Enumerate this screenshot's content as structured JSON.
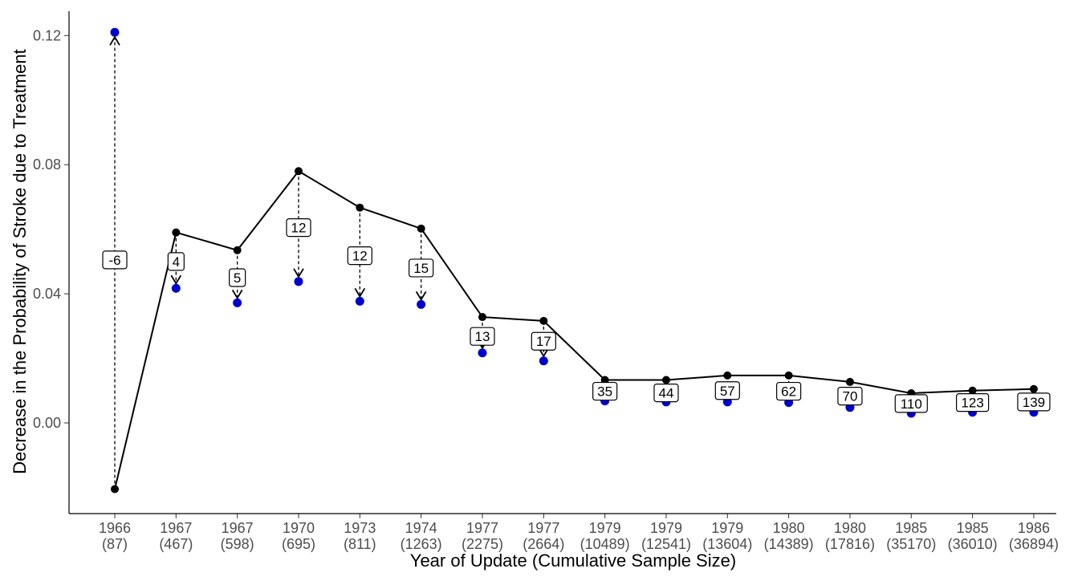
{
  "chart_data": {
    "type": "line",
    "title": "",
    "xlabel": "Year of Update (Cumulative Sample Size)",
    "ylabel": "Decrease in the Probability of Stroke due to Treatment",
    "ylim": [
      -0.027,
      0.128
    ],
    "yticks": [
      "0.00",
      "0.04",
      "0.08",
      "0.12"
    ],
    "ytick_values": [
      0.0,
      0.04,
      0.08,
      0.12
    ],
    "grid": false,
    "categories": [
      {
        "year": "1966",
        "n": "(87)"
      },
      {
        "year": "1967",
        "n": "(467)"
      },
      {
        "year": "1967",
        "n": "(598)"
      },
      {
        "year": "1970",
        "n": "(695)"
      },
      {
        "year": "1973",
        "n": "(811)"
      },
      {
        "year": "1974",
        "n": "(1263)"
      },
      {
        "year": "1977",
        "n": "(2275)"
      },
      {
        "year": "1977",
        "n": "(2664)"
      },
      {
        "year": "1979",
        "n": "(10489)"
      },
      {
        "year": "1979",
        "n": "(12541)"
      },
      {
        "year": "1979",
        "n": "(13604)"
      },
      {
        "year": "1980",
        "n": "(14389)"
      },
      {
        "year": "1980",
        "n": "(17816)"
      },
      {
        "year": "1985",
        "n": "(35170)"
      },
      {
        "year": "1985",
        "n": "(36010)"
      },
      {
        "year": "1986",
        "n": "(36894)"
      }
    ],
    "series": [
      {
        "values": [
          -0.0205,
          0.059,
          0.0535,
          0.078,
          0.0667,
          0.0602,
          0.0328,
          0.0316,
          0.0133,
          0.0133,
          0.0147,
          0.0147,
          0.0127,
          0.0092,
          0.01,
          0.0105
        ],
        "color": "#000000"
      },
      {
        "values": [
          0.121,
          0.0417,
          0.0372,
          0.0438,
          0.0377,
          0.0367,
          0.0217,
          0.0192,
          0.0068,
          0.0065,
          0.0065,
          0.0063,
          0.0048,
          0.003,
          0.0033,
          0.0033
        ],
        "color": "#0000cc"
      }
    ],
    "annotations": {
      "labels": [
        "-6",
        "4",
        "5",
        "12",
        "12",
        "15",
        "13",
        "17",
        "35",
        "44",
        "57",
        "62",
        "70",
        "110",
        "123",
        "139"
      ],
      "label_values": [
        0.0505,
        0.05,
        0.045,
        0.0605,
        0.0518,
        0.048,
        0.0268,
        0.0253,
        0.0098,
        0.0093,
        0.01,
        0.0098,
        0.0083,
        0.006,
        0.0063,
        0.0065
      ]
    }
  }
}
